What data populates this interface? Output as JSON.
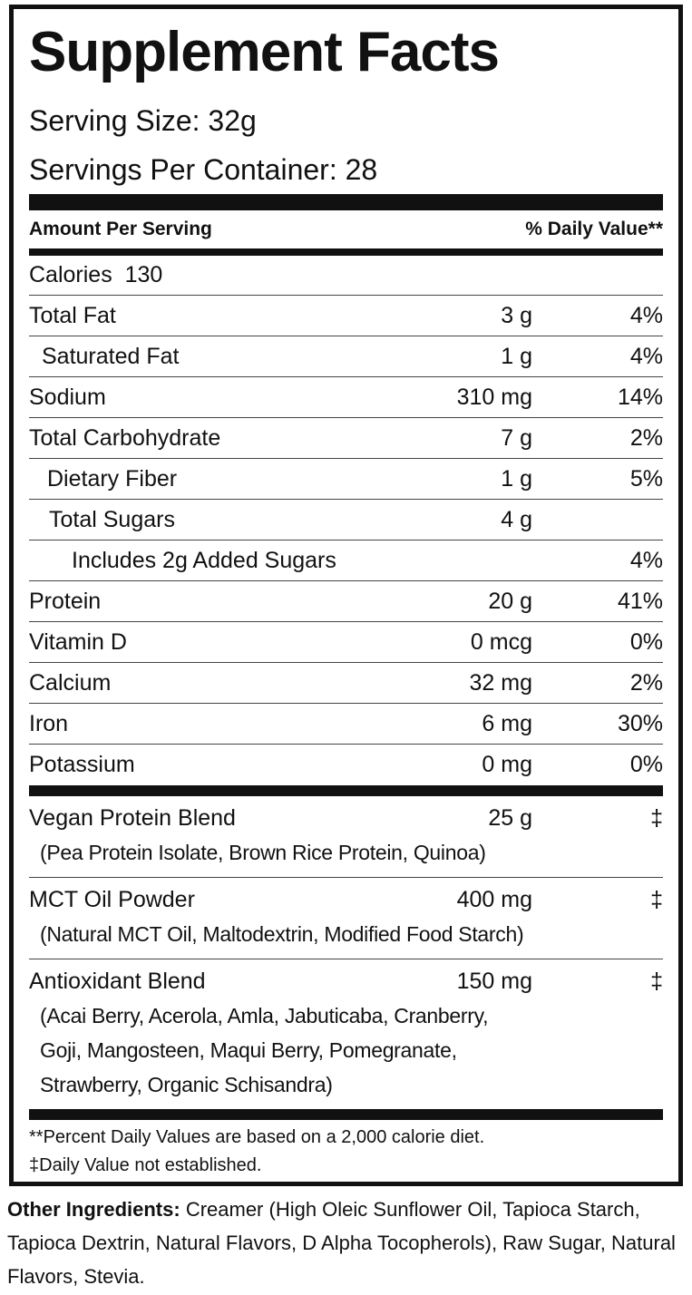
{
  "title": "Supplement Facts",
  "serving_size": "Serving Size: 32g",
  "servings_per_container": "Servings Per Container: 28",
  "header": {
    "amount": "Amount Per Serving",
    "daily_value": "% Daily Value**"
  },
  "calories": {
    "label": "Calories",
    "value": "130"
  },
  "nutrients": [
    {
      "name": "Total Fat",
      "amount": "3 g",
      "dv": "4%"
    },
    {
      "name": "Saturated Fat",
      "amount": "1 g",
      "dv": "4%"
    },
    {
      "name": "Sodium",
      "amount": "310 mg",
      "dv": "14%"
    },
    {
      "name": "Total Carbohydrate",
      "amount": "7 g",
      "dv": "2%"
    },
    {
      "name": "Dietary Fiber",
      "amount": "1 g",
      "dv": "5%"
    },
    {
      "name": "Total Sugars",
      "amount": "4 g"
    },
    {
      "name": "Includes 2g Added Sugars",
      "dv": "4%"
    },
    {
      "name": "Protein",
      "amount": "20 g",
      "dv": "41%"
    },
    {
      "name": "Vitamin D",
      "amount": "0 mcg",
      "dv": "0%"
    },
    {
      "name": "Calcium",
      "amount": "32 mg",
      "dv": "2%"
    },
    {
      "name": "Iron",
      "amount": "6 mg",
      "dv": "30%"
    },
    {
      "name": "Potassium",
      "amount": "0 mg",
      "dv": "0%"
    }
  ],
  "blends": [
    {
      "name": "Vegan Protein Blend",
      "amount": "25 g",
      "dv": "‡",
      "details": [
        "(Pea Protein Isolate, Brown Rice Protein, Quinoa)"
      ]
    },
    {
      "name": "MCT Oil Powder",
      "amount": "400 mg",
      "dv": "‡",
      "details": [
        "(Natural MCT Oil, Maltodextrin, Modified Food Starch)"
      ]
    },
    {
      "name": "Antioxidant Blend",
      "amount": "150 mg",
      "dv": "‡",
      "details": [
        "(Acai Berry, Acerola, Amla, Jabuticaba, Cranberry,",
        "Goji, Mangosteen, Maqui Berry, Pomegranate,",
        "Strawberry, Organic Schisandra)"
      ]
    }
  ],
  "footnotes": [
    "**Percent Daily Values are based on a 2,000 calorie diet.",
    "‡Daily Value not established."
  ],
  "other_ingredients": {
    "label": "Other Ingredients:",
    "text": "Creamer (High Oleic Sunflower Oil, Tapioca Starch, Tapioca Dextrin, Natural Flavors, D Alpha Tocopherols), Raw Sugar, Natural Flavors, Stevia."
  }
}
